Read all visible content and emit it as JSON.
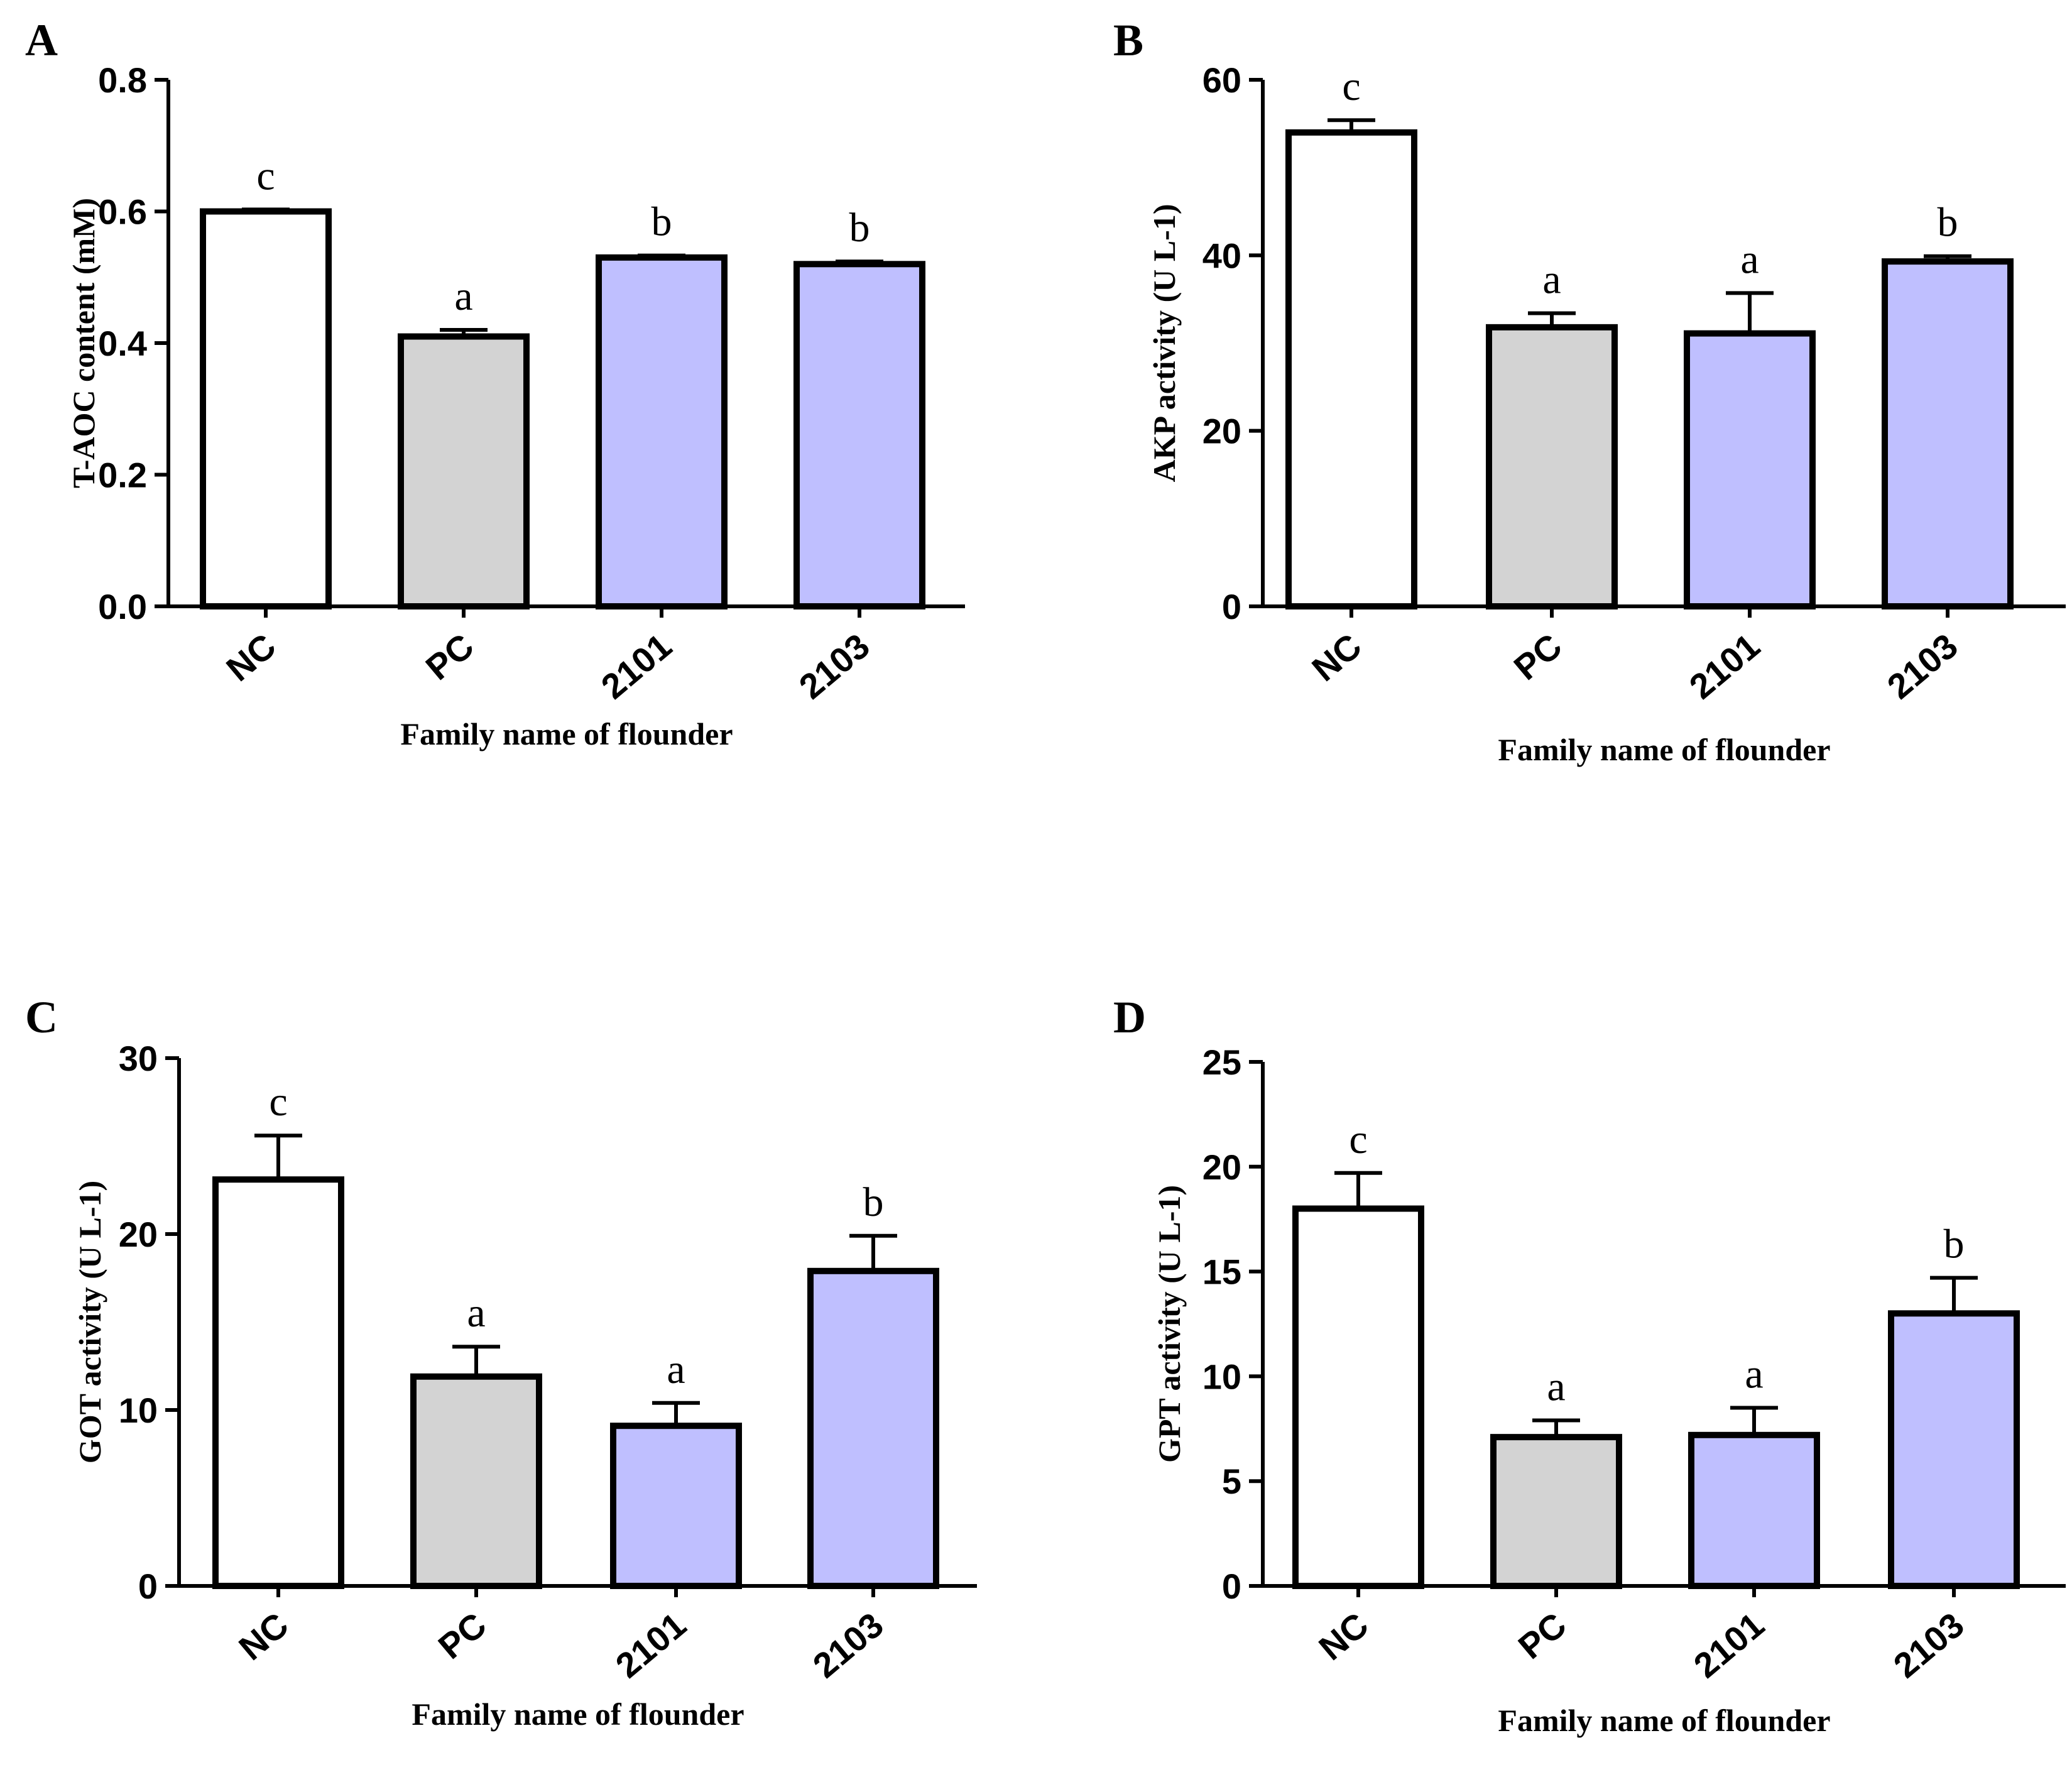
{
  "chart_data": [
    {
      "panel": "A",
      "type": "bar",
      "categories": [
        "NC",
        "PC",
        "2101",
        "2103"
      ],
      "values": [
        0.6,
        0.41,
        0.53,
        0.52
      ],
      "errors": [
        0.003,
        0.01,
        0.003,
        0.004
      ],
      "significance": [
        "c",
        "a",
        "b",
        "b"
      ],
      "colors": [
        "#ffffff",
        "#d3d3d3",
        "#bfbfff",
        "#bfbfff"
      ],
      "ylabel": "T-AOC content (mM)",
      "xlabel": "Family name of flounder",
      "ylim": [
        0,
        0.8
      ],
      "yticks": [
        "0.0",
        "0.2",
        "0.4",
        "0.6",
        "0.8"
      ],
      "ytick_values": [
        0,
        0.2,
        0.4,
        0.6,
        0.8
      ]
    },
    {
      "panel": "B",
      "type": "bar",
      "categories": [
        "NC",
        "PC",
        "2101",
        "2103"
      ],
      "values": [
        54,
        31.8,
        31.1,
        39.3
      ],
      "errors": [
        1.4,
        1.6,
        4.6,
        0.6
      ],
      "significance": [
        "c",
        "a",
        "a",
        "b"
      ],
      "colors": [
        "#ffffff",
        "#d3d3d3",
        "#bfbfff",
        "#bfbfff"
      ],
      "ylabel": "AKP activity (U L-1)",
      "xlabel": "Family name of flounder",
      "ylim": [
        0,
        60
      ],
      "yticks": [
        "0",
        "20",
        "40",
        "60"
      ],
      "ytick_values": [
        0,
        20,
        40,
        60
      ]
    },
    {
      "panel": "C",
      "type": "bar",
      "categories": [
        "NC",
        "PC",
        "2101",
        "2103"
      ],
      "values": [
        23.1,
        11.9,
        9.1,
        17.9
      ],
      "errors": [
        2.5,
        1.7,
        1.3,
        2.0
      ],
      "significance": [
        "c",
        "a",
        "a",
        "b"
      ],
      "colors": [
        "#ffffff",
        "#d3d3d3",
        "#bfbfff",
        "#bfbfff"
      ],
      "ylabel": "GOT activity (U L-1)",
      "xlabel": "Family name of flounder",
      "ylim": [
        0,
        30
      ],
      "yticks": [
        "0",
        "10",
        "20",
        "30"
      ],
      "ytick_values": [
        0,
        10,
        20,
        30
      ]
    },
    {
      "panel": "D",
      "type": "bar",
      "categories": [
        "NC",
        "PC",
        "2101",
        "2103"
      ],
      "values": [
        18.0,
        7.1,
        7.2,
        13.0
      ],
      "errors": [
        1.7,
        0.8,
        1.3,
        1.7
      ],
      "significance": [
        "c",
        "a",
        "a",
        "b"
      ],
      "colors": [
        "#ffffff",
        "#d3d3d3",
        "#bfbfff",
        "#bfbfff"
      ],
      "ylabel": "GPT activity (U L-1)",
      "xlabel": "Family name of flounder",
      "ylim": [
        0,
        25
      ],
      "yticks": [
        "0",
        "5",
        "10",
        "15",
        "20",
        "25"
      ],
      "ytick_values": [
        0,
        5,
        10,
        15,
        20,
        25
      ]
    }
  ]
}
